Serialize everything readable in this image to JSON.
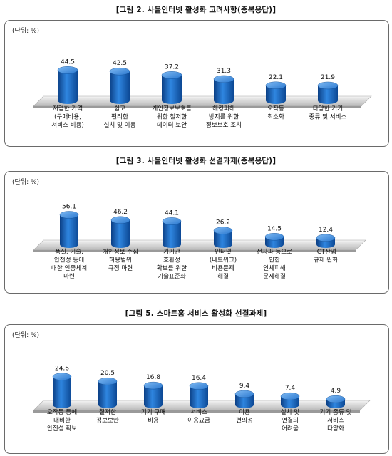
{
  "unit_label": "(단위: %)",
  "chart_data": [
    {
      "type": "bar",
      "title": "[그림 2. 사물인터넷 활성화 고려사항(중복응답)]",
      "unit": "(단위: %)",
      "categories": [
        [
          "저렴한 가격",
          "(구매비용,",
          "서비스 비용)"
        ],
        [
          "쉽고",
          "편리한",
          "설치 및 이용"
        ],
        [
          "개인정보보호를",
          "위한 철저한",
          "데이터 보안"
        ],
        [
          "해킹피해",
          "방지를 위한",
          "정보보호 조치"
        ],
        [
          "오작동",
          "최소화"
        ],
        [
          "다양한 기기",
          "종류 및 서비스"
        ]
      ],
      "values": [
        44.5,
        42.5,
        37.2,
        31.3,
        22.1,
        21.9
      ],
      "bar_color": "#1e6fc8"
    },
    {
      "type": "bar",
      "title": "[그림 3. 사물인터넷 활성화 선결과제(중복응답)]",
      "unit": "(단위: %)",
      "categories": [
        [
          "품질, 기술,",
          "안전성 등에",
          "대한 인증체계",
          "마련"
        ],
        [
          "개인정보 수집",
          "허용범위",
          "규정 마련"
        ],
        [
          "기기간",
          "호환성",
          "확보를 위한",
          "기술표준화"
        ],
        [
          "인터넷",
          "(네트워크)",
          "비용문제",
          "해결"
        ],
        [
          "전자파 등으로",
          "인한",
          "인체피해",
          "문제해결"
        ],
        [
          "ICT산업",
          "규제 완화"
        ]
      ],
      "values": [
        56.1,
        46.2,
        44.1,
        26.2,
        14.5,
        12.4
      ],
      "bar_color": "#1e6fc8"
    },
    {
      "type": "bar",
      "title": "[그림 5. 스마트홈 서비스 활성화 선결과제]",
      "unit": "(단위: %)",
      "categories": [
        [
          "오작동 등에",
          "대비한",
          "안전성 확보"
        ],
        [
          "철저한",
          "정보보안"
        ],
        [
          "기기 구매",
          "비용"
        ],
        [
          "서비스",
          "이용요금"
        ],
        [
          "이용",
          "편의성"
        ],
        [
          "설치 및",
          "연결의",
          "어려움"
        ],
        [
          "기기 종류 및",
          "서비스",
          "다양화"
        ]
      ],
      "values": [
        24.6,
        20.5,
        16.8,
        16.4,
        9.4,
        7.4,
        4.9
      ],
      "bar_color": "#1e6fc8"
    }
  ]
}
